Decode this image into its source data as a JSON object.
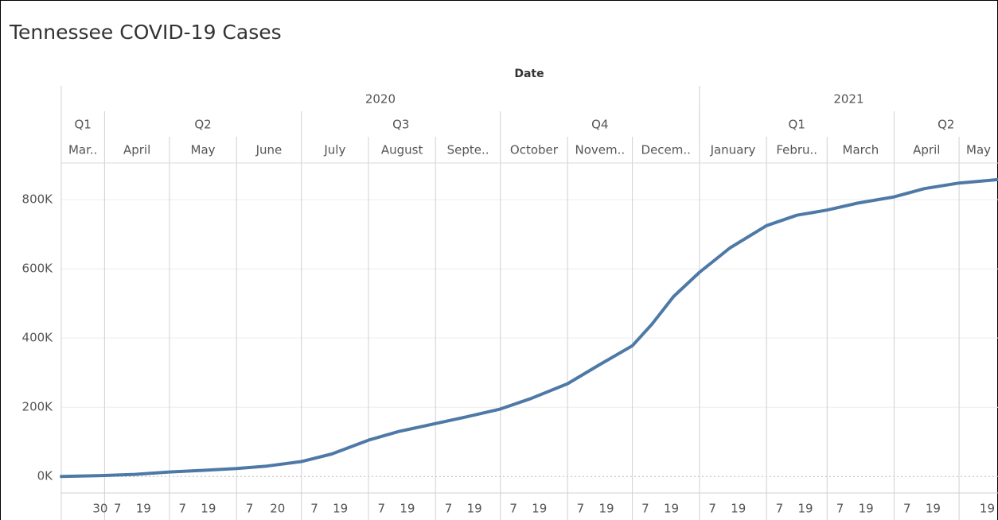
{
  "chart_data": {
    "type": "line",
    "title": "Tennessee COVID-19 Cases",
    "x_title": "Date",
    "years": [
      {
        "label": "2020",
        "start": "2020-03-12"
      },
      {
        "label": "2021",
        "start": "2021-01-01"
      }
    ],
    "quarters": [
      {
        "label": "Q1",
        "start": "2020-03-12"
      },
      {
        "label": "Q2",
        "start": "2020-04-01"
      },
      {
        "label": "Q3",
        "start": "2020-07-01"
      },
      {
        "label": "Q4",
        "start": "2020-10-01"
      },
      {
        "label": "Q1",
        "start": "2021-01-01"
      },
      {
        "label": "Q2",
        "start": "2021-04-01"
      }
    ],
    "months": [
      {
        "label": "Mar..",
        "start": "2020-03-12"
      },
      {
        "label": "April",
        "start": "2020-04-01"
      },
      {
        "label": "May",
        "start": "2020-05-01"
      },
      {
        "label": "June",
        "start": "2020-06-01"
      },
      {
        "label": "July",
        "start": "2020-07-01"
      },
      {
        "label": "August",
        "start": "2020-08-01"
      },
      {
        "label": "Septe..",
        "start": "2020-09-01"
      },
      {
        "label": "October",
        "start": "2020-10-01"
      },
      {
        "label": "Novem..",
        "start": "2020-11-01"
      },
      {
        "label": "Decem..",
        "start": "2020-12-01"
      },
      {
        "label": "January",
        "start": "2021-01-01"
      },
      {
        "label": "Febru..",
        "start": "2021-02-01"
      },
      {
        "label": "March",
        "start": "2021-03-01"
      },
      {
        "label": "April",
        "start": "2021-04-01"
      },
      {
        "label": "May",
        "start": "2021-05-01"
      }
    ],
    "x": [
      "2020-03-12",
      "2020-04-01",
      "2020-04-15",
      "2020-05-01",
      "2020-05-15",
      "2020-06-01",
      "2020-06-15",
      "2020-07-01",
      "2020-07-15",
      "2020-08-01",
      "2020-08-15",
      "2020-09-01",
      "2020-09-15",
      "2020-10-01",
      "2020-10-15",
      "2020-11-01",
      "2020-11-15",
      "2020-12-01",
      "2020-12-10",
      "2020-12-20",
      "2021-01-01",
      "2021-01-15",
      "2021-02-01",
      "2021-02-15",
      "2021-03-01",
      "2021-03-15",
      "2021-04-01",
      "2021-04-15",
      "2021-05-01",
      "2021-05-19"
    ],
    "series": [
      {
        "name": "Cases",
        "color": "#4e79a7",
        "values": [
          200,
          2800,
          6000,
          13000,
          17000,
          23000,
          30000,
          43000,
          65000,
          105000,
          130000,
          153000,
          172000,
          195000,
          225000,
          268000,
          320000,
          378000,
          440000,
          520000,
          590000,
          660000,
          725000,
          755000,
          770000,
          790000,
          808000,
          832000,
          848000,
          858000
        ]
      }
    ],
    "xlim": [
      "2020-03-12",
      "2021-05-19"
    ],
    "xticks": [
      {
        "value": "2020-03-30",
        "label": "30"
      },
      {
        "value": "2020-04-07",
        "label": "7"
      },
      {
        "value": "2020-04-19",
        "label": "19"
      },
      {
        "value": "2020-05-07",
        "label": "7"
      },
      {
        "value": "2020-05-19",
        "label": "19"
      },
      {
        "value": "2020-06-07",
        "label": "7"
      },
      {
        "value": "2020-06-20",
        "label": "20"
      },
      {
        "value": "2020-07-07",
        "label": "7"
      },
      {
        "value": "2020-07-19",
        "label": "19"
      },
      {
        "value": "2020-08-07",
        "label": "7"
      },
      {
        "value": "2020-08-19",
        "label": "19"
      },
      {
        "value": "2020-09-07",
        "label": "7"
      },
      {
        "value": "2020-09-19",
        "label": "19"
      },
      {
        "value": "2020-10-07",
        "label": "7"
      },
      {
        "value": "2020-10-19",
        "label": "19"
      },
      {
        "value": "2020-11-07",
        "label": "7"
      },
      {
        "value": "2020-11-19",
        "label": "19"
      },
      {
        "value": "2020-12-07",
        "label": "7"
      },
      {
        "value": "2020-12-19",
        "label": "19"
      },
      {
        "value": "2021-01-07",
        "label": "7"
      },
      {
        "value": "2021-01-19",
        "label": "19"
      },
      {
        "value": "2021-02-07",
        "label": "7"
      },
      {
        "value": "2021-02-19",
        "label": "19"
      },
      {
        "value": "2021-03-07",
        "label": "7"
      },
      {
        "value": "2021-03-19",
        "label": "19"
      },
      {
        "value": "2021-04-07",
        "label": "7"
      },
      {
        "value": "2021-04-19",
        "label": "19"
      },
      {
        "value": "2021-05-19",
        "label": "19"
      }
    ],
    "ylim": [
      -47700,
      906000
    ],
    "yticks": [
      {
        "value": 0,
        "label": "0K"
      },
      {
        "value": 200000,
        "label": "200K"
      },
      {
        "value": 400000,
        "label": "400K"
      },
      {
        "value": 600000,
        "label": "600K"
      },
      {
        "value": 800000,
        "label": "800K"
      }
    ],
    "grid": true
  }
}
